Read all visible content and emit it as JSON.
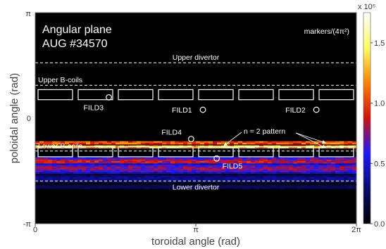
{
  "chart_data": {
    "type": "heatmap",
    "title_lines": [
      "Angular plane",
      "AUG #34570"
    ],
    "xlabel": "toroidal angle (rad)",
    "ylabel": "poloidal angle (rad)",
    "x_ticks": [
      "0",
      "π",
      "2π"
    ],
    "y_ticks": [
      "π",
      "0",
      "-π"
    ],
    "xlim": [
      0,
      6.2832
    ],
    "ylim": [
      -3.1416,
      3.1416
    ],
    "colorbar": {
      "label": "markers/(4π²)",
      "exponent": "x 10⁵",
      "ticks": [
        "0.0",
        "0.5",
        "1.0",
        "1.5"
      ],
      "range": [
        0,
        1.75
      ],
      "colors": [
        "#000000",
        "#0a0a6e",
        "#1a1aff",
        "#d01010",
        "#ff8000",
        "#ffff60",
        "#ffffff"
      ]
    },
    "intensity_bands": [
      {
        "y_center": -0.73,
        "half_width": 0.045,
        "value": 1.2
      },
      {
        "y_center": -0.85,
        "half_width": 0.04,
        "value": 1.5
      },
      {
        "y_center": -1.3,
        "half_width": 0.15,
        "value": 0.85
      },
      {
        "y_center": -1.5,
        "half_width": 0.15,
        "value": 0.75
      },
      {
        "y_center": -1.8,
        "half_width": 0.12,
        "value": 0.35
      },
      {
        "y_center": -2.05,
        "half_width": 0.06,
        "value": 0.25
      }
    ],
    "lines": [
      {
        "label": "Upper divertor",
        "y": 1.65
      },
      {
        "label": "Upper B-coils",
        "y": 0.98
      },
      {
        "label": "Lower B-coils",
        "y": -0.98
      },
      {
        "label": "Lower divertor",
        "y": -1.87
      }
    ],
    "coil_rows": [
      {
        "y_top": 0.85,
        "y_bottom": 0.55,
        "count": 8
      },
      {
        "y_top": -0.85,
        "y_bottom": -1.15,
        "count": 8
      }
    ],
    "detectors": [
      {
        "label": "FILD1",
        "x": 3.28,
        "y": 0.25
      },
      {
        "label": "FILD2",
        "x": 5.5,
        "y": 0.25
      },
      {
        "label": "FILD3",
        "x": 1.44,
        "y": 0.62
      },
      {
        "label": "FILD4",
        "x": 3.05,
        "y": -0.62
      },
      {
        "label": "FILD5",
        "x": 3.55,
        "y": -1.2
      }
    ],
    "annotation": {
      "text": "n = 2 pattern"
    }
  }
}
